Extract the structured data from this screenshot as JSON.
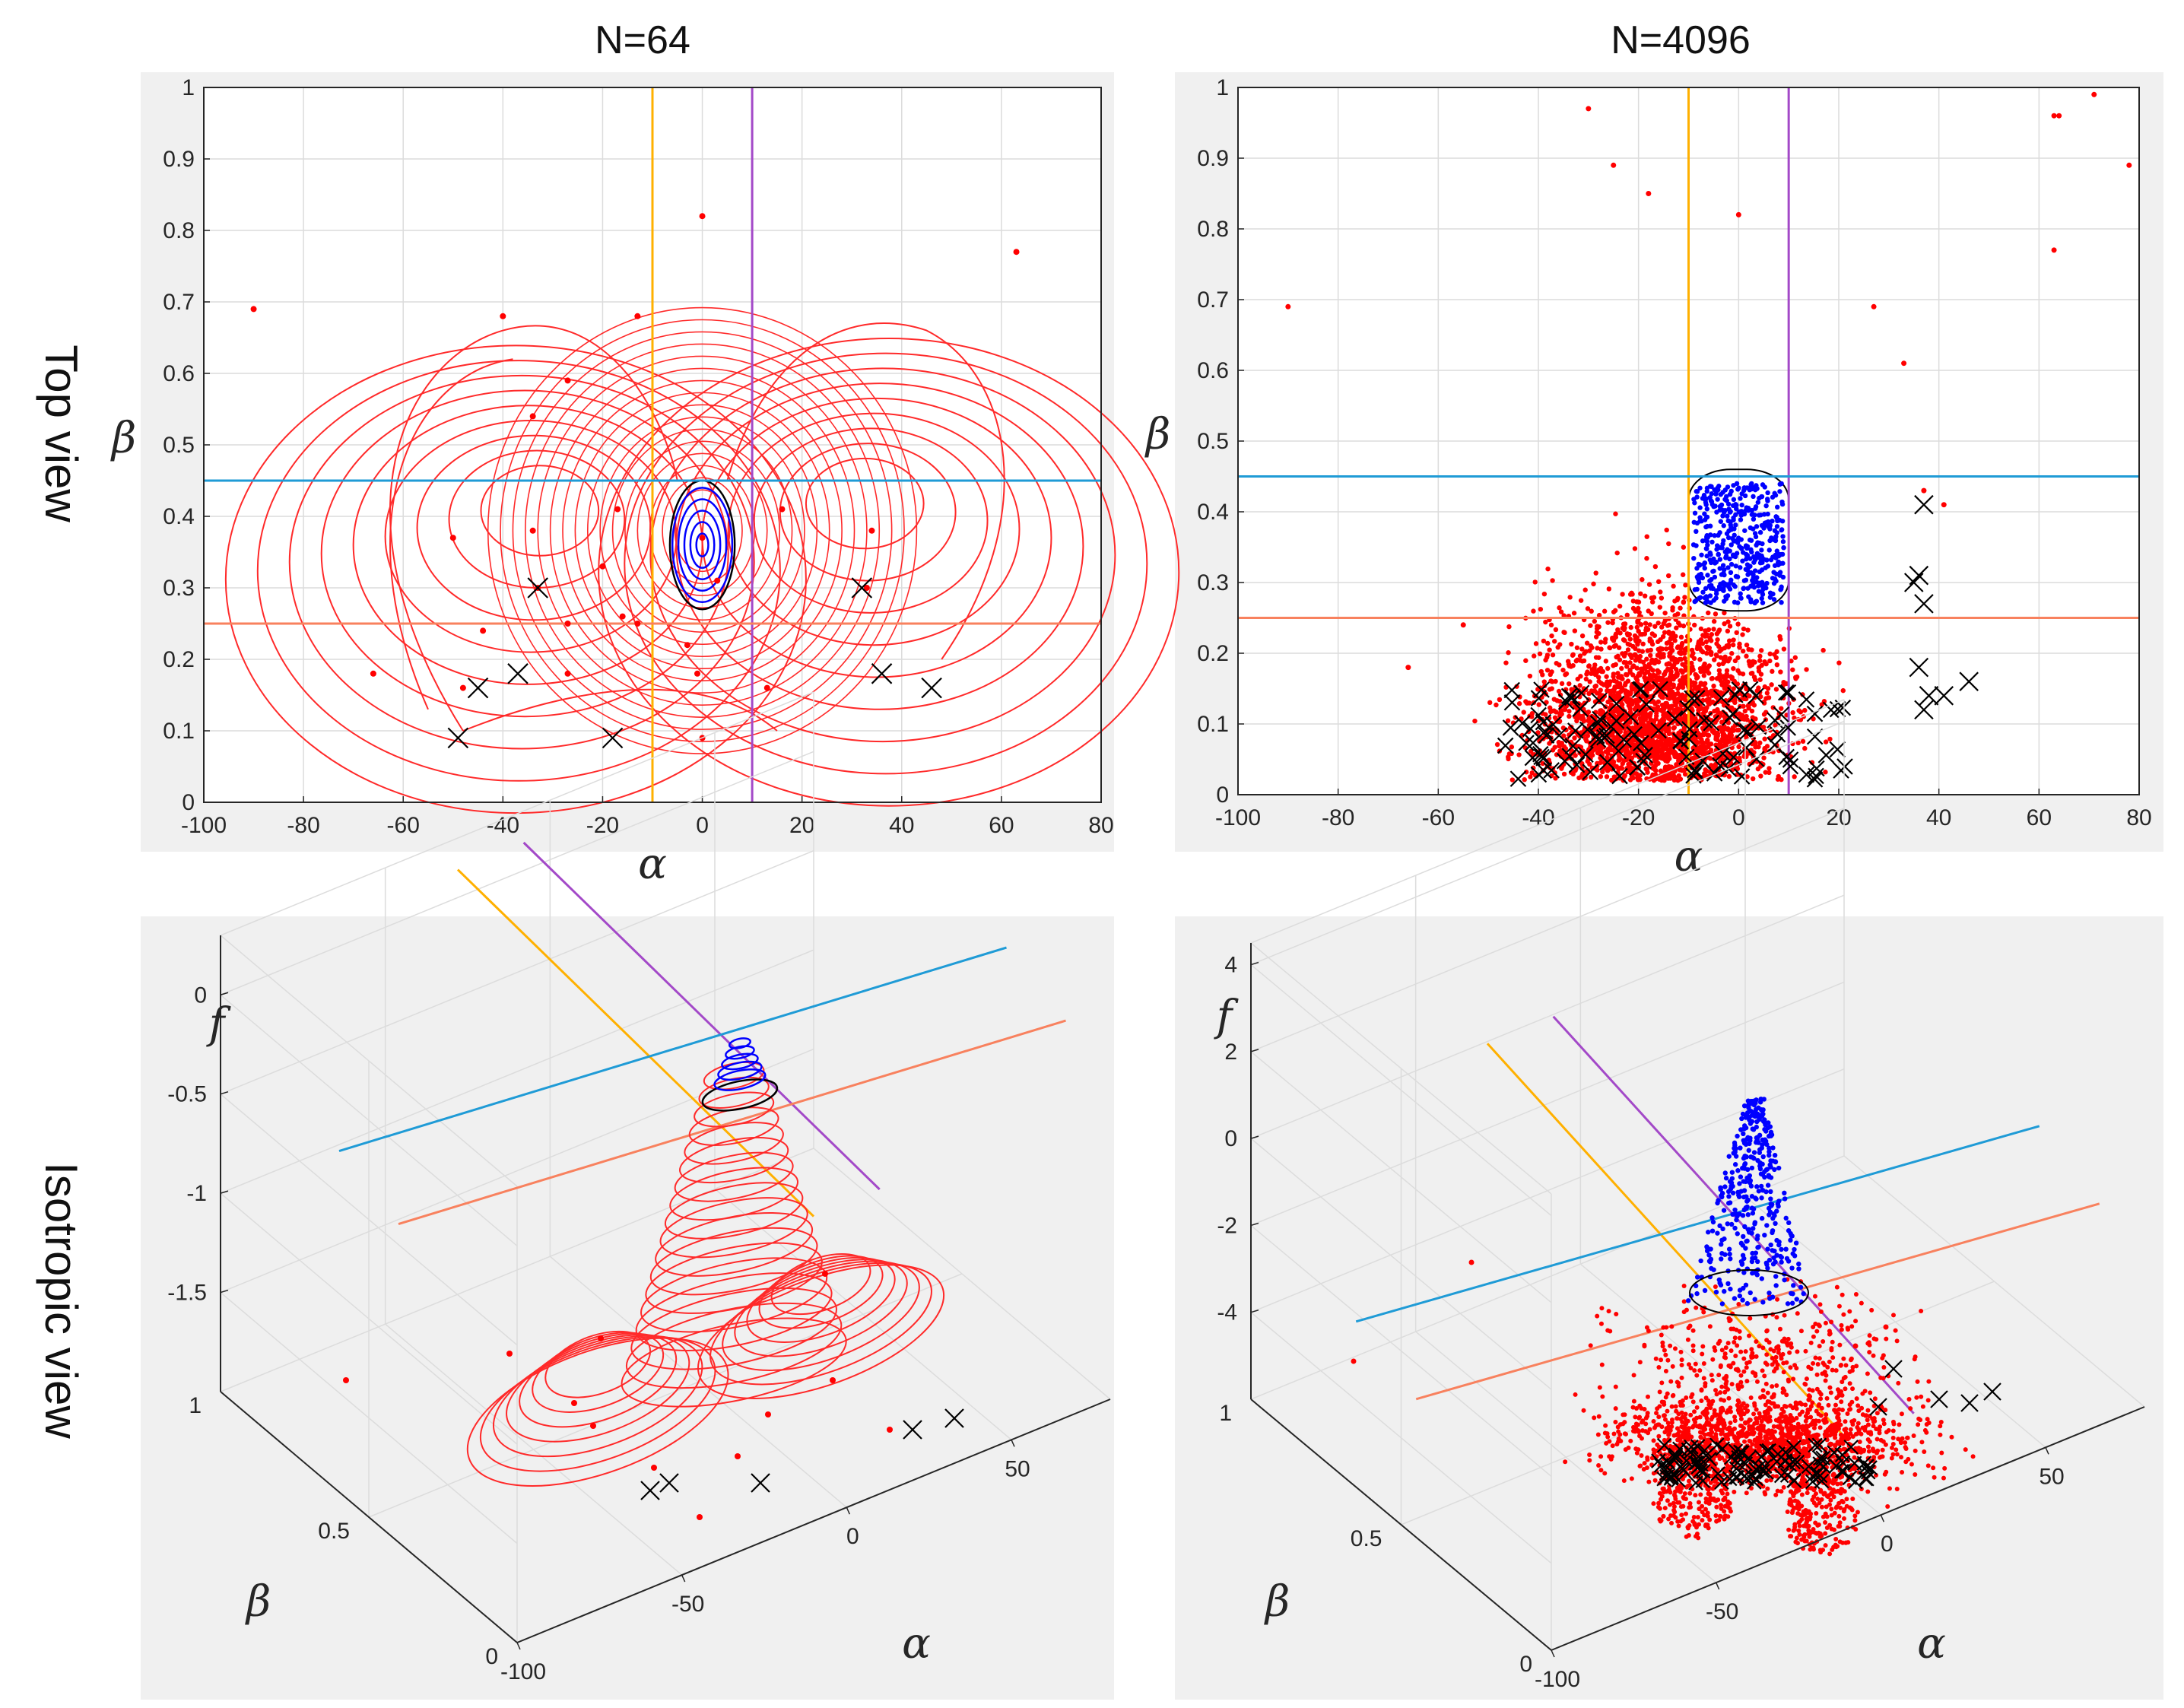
{
  "figure": {
    "column_titles": [
      "N=64",
      "N=4096"
    ],
    "row_labels": [
      "Top view",
      "Isotropic view"
    ]
  },
  "colors": {
    "panel_bg": "#f0f0f0",
    "axes_bg": "#ffffff",
    "grid": "#dcdcdc",
    "axis": "#262626",
    "points": "#ff0000",
    "contours_red": "#ff2a2a",
    "contours_blue": "#0000ff",
    "contour_black": "#000000",
    "cross": "#000000",
    "line_orange": "#ffb000",
    "line_purple": "#a349c8",
    "line_blue": "#1f9bd6",
    "line_salmon": "#f8815e"
  },
  "chart_data": [
    {
      "id": "top-n64",
      "type": "scatter",
      "title": "N=64",
      "xlabel": "α",
      "ylabel": "β",
      "xlim": [
        -100,
        80
      ],
      "ylim": [
        0,
        1
      ],
      "xticks": [
        -100,
        -80,
        -60,
        -40,
        -20,
        0,
        20,
        40,
        60,
        80
      ],
      "yticks": [
        0,
        0.1,
        0.2,
        0.3,
        0.4,
        0.5,
        0.6,
        0.7,
        0.8,
        0.9,
        1
      ],
      "grid": true,
      "vlines": [
        {
          "x": -10,
          "color": "orange"
        },
        {
          "x": 10,
          "color": "purple"
        }
      ],
      "hlines": [
        {
          "y": 0.45,
          "color": "blue"
        },
        {
          "y": 0.25,
          "color": "salmon"
        }
      ],
      "points": [
        [
          -90,
          0.69
        ],
        [
          63,
          0.77
        ],
        [
          0,
          0.82
        ],
        [
          -40,
          0.68
        ],
        [
          -13,
          0.68
        ],
        [
          -27,
          0.59
        ],
        [
          -34,
          0.54
        ],
        [
          -50,
          0.37
        ],
        [
          -44,
          0.24
        ],
        [
          -66,
          0.18
        ],
        [
          -27,
          0.25
        ],
        [
          -27,
          0.18
        ],
        [
          -16,
          0.26
        ],
        [
          -13,
          0.25
        ],
        [
          -3,
          0.22
        ],
        [
          -1,
          0.18
        ],
        [
          0,
          0.09
        ],
        [
          13,
          0.16
        ],
        [
          16,
          0.41
        ],
        [
          -17,
          0.41
        ],
        [
          3,
          0.31
        ],
        [
          0,
          0.37
        ],
        [
          34,
          0.38
        ],
        [
          -34,
          0.38
        ],
        [
          -33,
          0.3
        ],
        [
          33,
          0.3
        ],
        [
          -48,
          0.16
        ],
        [
          -20,
          0.33
        ]
      ],
      "crosses": [
        [
          -33,
          0.3
        ],
        [
          32,
          0.3
        ],
        [
          -45,
          0.16
        ],
        [
          -37,
          0.18
        ],
        [
          -49,
          0.09
        ],
        [
          -18,
          0.09
        ],
        [
          36,
          0.18
        ],
        [
          46,
          0.16
        ]
      ],
      "contours": {
        "red_levels": 30,
        "blue_levels": 5,
        "peak": [
          0,
          0.36
        ],
        "lobes": [
          [
            -32,
            0.42
          ],
          [
            32,
            0.43
          ]
        ]
      }
    },
    {
      "id": "top-n4096",
      "type": "scatter",
      "title": "N=4096",
      "xlabel": "α",
      "ylabel": "β",
      "xlim": [
        -100,
        80
      ],
      "ylim": [
        0,
        1
      ],
      "xticks": [
        -100,
        -80,
        -60,
        -40,
        -20,
        0,
        20,
        40,
        60,
        80
      ],
      "yticks": [
        0,
        0.1,
        0.2,
        0.3,
        0.4,
        0.5,
        0.6,
        0.7,
        0.8,
        0.9,
        1
      ],
      "grid": true,
      "vlines": [
        {
          "x": -10,
          "color": "orange"
        },
        {
          "x": 10,
          "color": "purple"
        }
      ],
      "hlines": [
        {
          "y": 0.45,
          "color": "blue"
        },
        {
          "y": 0.25,
          "color": "salmon"
        }
      ],
      "point_count": 4096,
      "outliers": [
        [
          -90,
          0.69
        ],
        [
          -30,
          0.97
        ],
        [
          -25,
          0.89
        ],
        [
          -18,
          0.85
        ],
        [
          0,
          0.82
        ],
        [
          63,
          0.96
        ],
        [
          64,
          0.96
        ],
        [
          71,
          0.99
        ],
        [
          78,
          0.89
        ],
        [
          63,
          0.77
        ],
        [
          27,
          0.69
        ],
        [
          33,
          0.61
        ],
        [
          37,
          0.43
        ],
        [
          41,
          0.41
        ],
        [
          -66,
          0.18
        ],
        [
          -55,
          0.24
        ]
      ],
      "blue_region": {
        "alpha": [
          -9,
          9
        ],
        "beta": [
          0.26,
          0.46
        ],
        "count": 450
      },
      "crosses_extra": [
        [
          37,
          0.41
        ],
        [
          36,
          0.31
        ],
        [
          37,
          0.27
        ],
        [
          35,
          0.3
        ],
        [
          36,
          0.18
        ],
        [
          38,
          0.14
        ],
        [
          41,
          0.14
        ],
        [
          46,
          0.16
        ],
        [
          37,
          0.12
        ]
      ]
    },
    {
      "id": "iso-n64",
      "type": "surface3d",
      "xlabel": "α",
      "ylabel": "β",
      "zlabel": "f",
      "xlim": [
        -100,
        80
      ],
      "ylim": [
        0,
        1
      ],
      "zlim": [
        -2,
        0.3
      ],
      "xticks": [
        -100,
        -50,
        0,
        50
      ],
      "yticks": [
        0,
        0.5,
        1
      ],
      "zticks": [
        -1.5,
        -1,
        -0.5,
        0
      ],
      "contours": "stacked red ellipses with blue peak"
    },
    {
      "id": "iso-n4096",
      "type": "scatter3d",
      "xlabel": "α",
      "ylabel": "β",
      "zlabel": "f",
      "xlim": [
        -100,
        80
      ],
      "ylim": [
        0,
        1
      ],
      "zlim": [
        -6,
        4.5
      ],
      "xticks": [
        -100,
        -50,
        0,
        50
      ],
      "yticks": [
        0,
        0.5,
        1
      ],
      "zticks": [
        -4,
        -2,
        0,
        2,
        4
      ],
      "points": "red cloud with blue peak"
    }
  ]
}
